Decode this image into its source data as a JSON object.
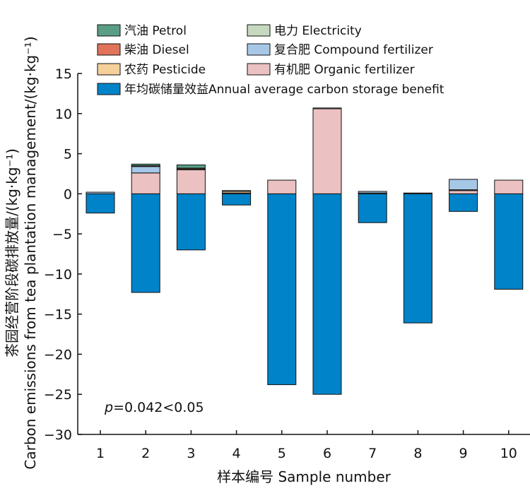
{
  "chart_data": {
    "type": "bar",
    "stacked": true,
    "title": "",
    "xlabel": "样本编号 Sample number",
    "ylabel": "茶园经营阶段碳排放量/(kg·kg⁻¹)",
    "ylabel_line2": "Carbon emissions from tea plantation management/(kg·kg⁻¹)",
    "ylim": [
      -30,
      15
    ],
    "yticks": [
      15,
      10,
      5,
      0,
      -5,
      -10,
      -15,
      -20,
      -25,
      -30
    ],
    "categories": [
      "1",
      "2",
      "3",
      "4",
      "5",
      "6",
      "7",
      "8",
      "9",
      "10"
    ],
    "series": [
      {
        "name": "汽油 Petrol",
        "color": "#5a9e86",
        "values": [
          0,
          0.2,
          0.4,
          0,
          0,
          0,
          0,
          0,
          0,
          0
        ]
      },
      {
        "name": "电力 Electricity",
        "color": "#c6d9bf",
        "values": [
          0,
          0,
          0,
          0,
          0,
          0.1,
          0,
          0,
          0,
          0
        ]
      },
      {
        "name": "柴油 Diesel",
        "color": "#e0735a",
        "values": [
          0,
          0.1,
          0.1,
          0,
          0,
          0,
          0,
          0.1,
          0,
          0
        ]
      },
      {
        "name": "复合肥 Compound fertilizer",
        "color": "#a7c7e7",
        "values": [
          0.2,
          0.8,
          0,
          0.1,
          0,
          0,
          0.2,
          0,
          1.3,
          0
        ]
      },
      {
        "name": "农药 Pesticide",
        "color": "#f5d09b",
        "values": [
          0,
          0,
          0.1,
          0.2,
          0,
          0,
          0.1,
          0,
          0.1,
          0
        ]
      },
      {
        "name": "有机肥 Organic fertilizer",
        "color": "#ecc1c1",
        "values": [
          0,
          2.6,
          3.0,
          0.1,
          1.7,
          10.6,
          0,
          0,
          0.4,
          1.7
        ]
      },
      {
        "name": "年均碳储量效益Annual average carbon storage benefit",
        "color": "#0083c8",
        "values": [
          -2.4,
          -12.3,
          -7.0,
          -1.4,
          -23.8,
          -25.0,
          -3.6,
          -16.1,
          -2.2,
          -11.9
        ]
      }
    ],
    "stack_order": [
      "有机肥 Organic fertilizer",
      "农药 Pesticide",
      "复合肥 Compound fertilizer",
      "柴油 Diesel",
      "电力 Electricity",
      "汽油 Petrol"
    ],
    "legend_position": "top-left",
    "annotation": {
      "italic": "p",
      "rest": "=0.042<0.05"
    }
  }
}
